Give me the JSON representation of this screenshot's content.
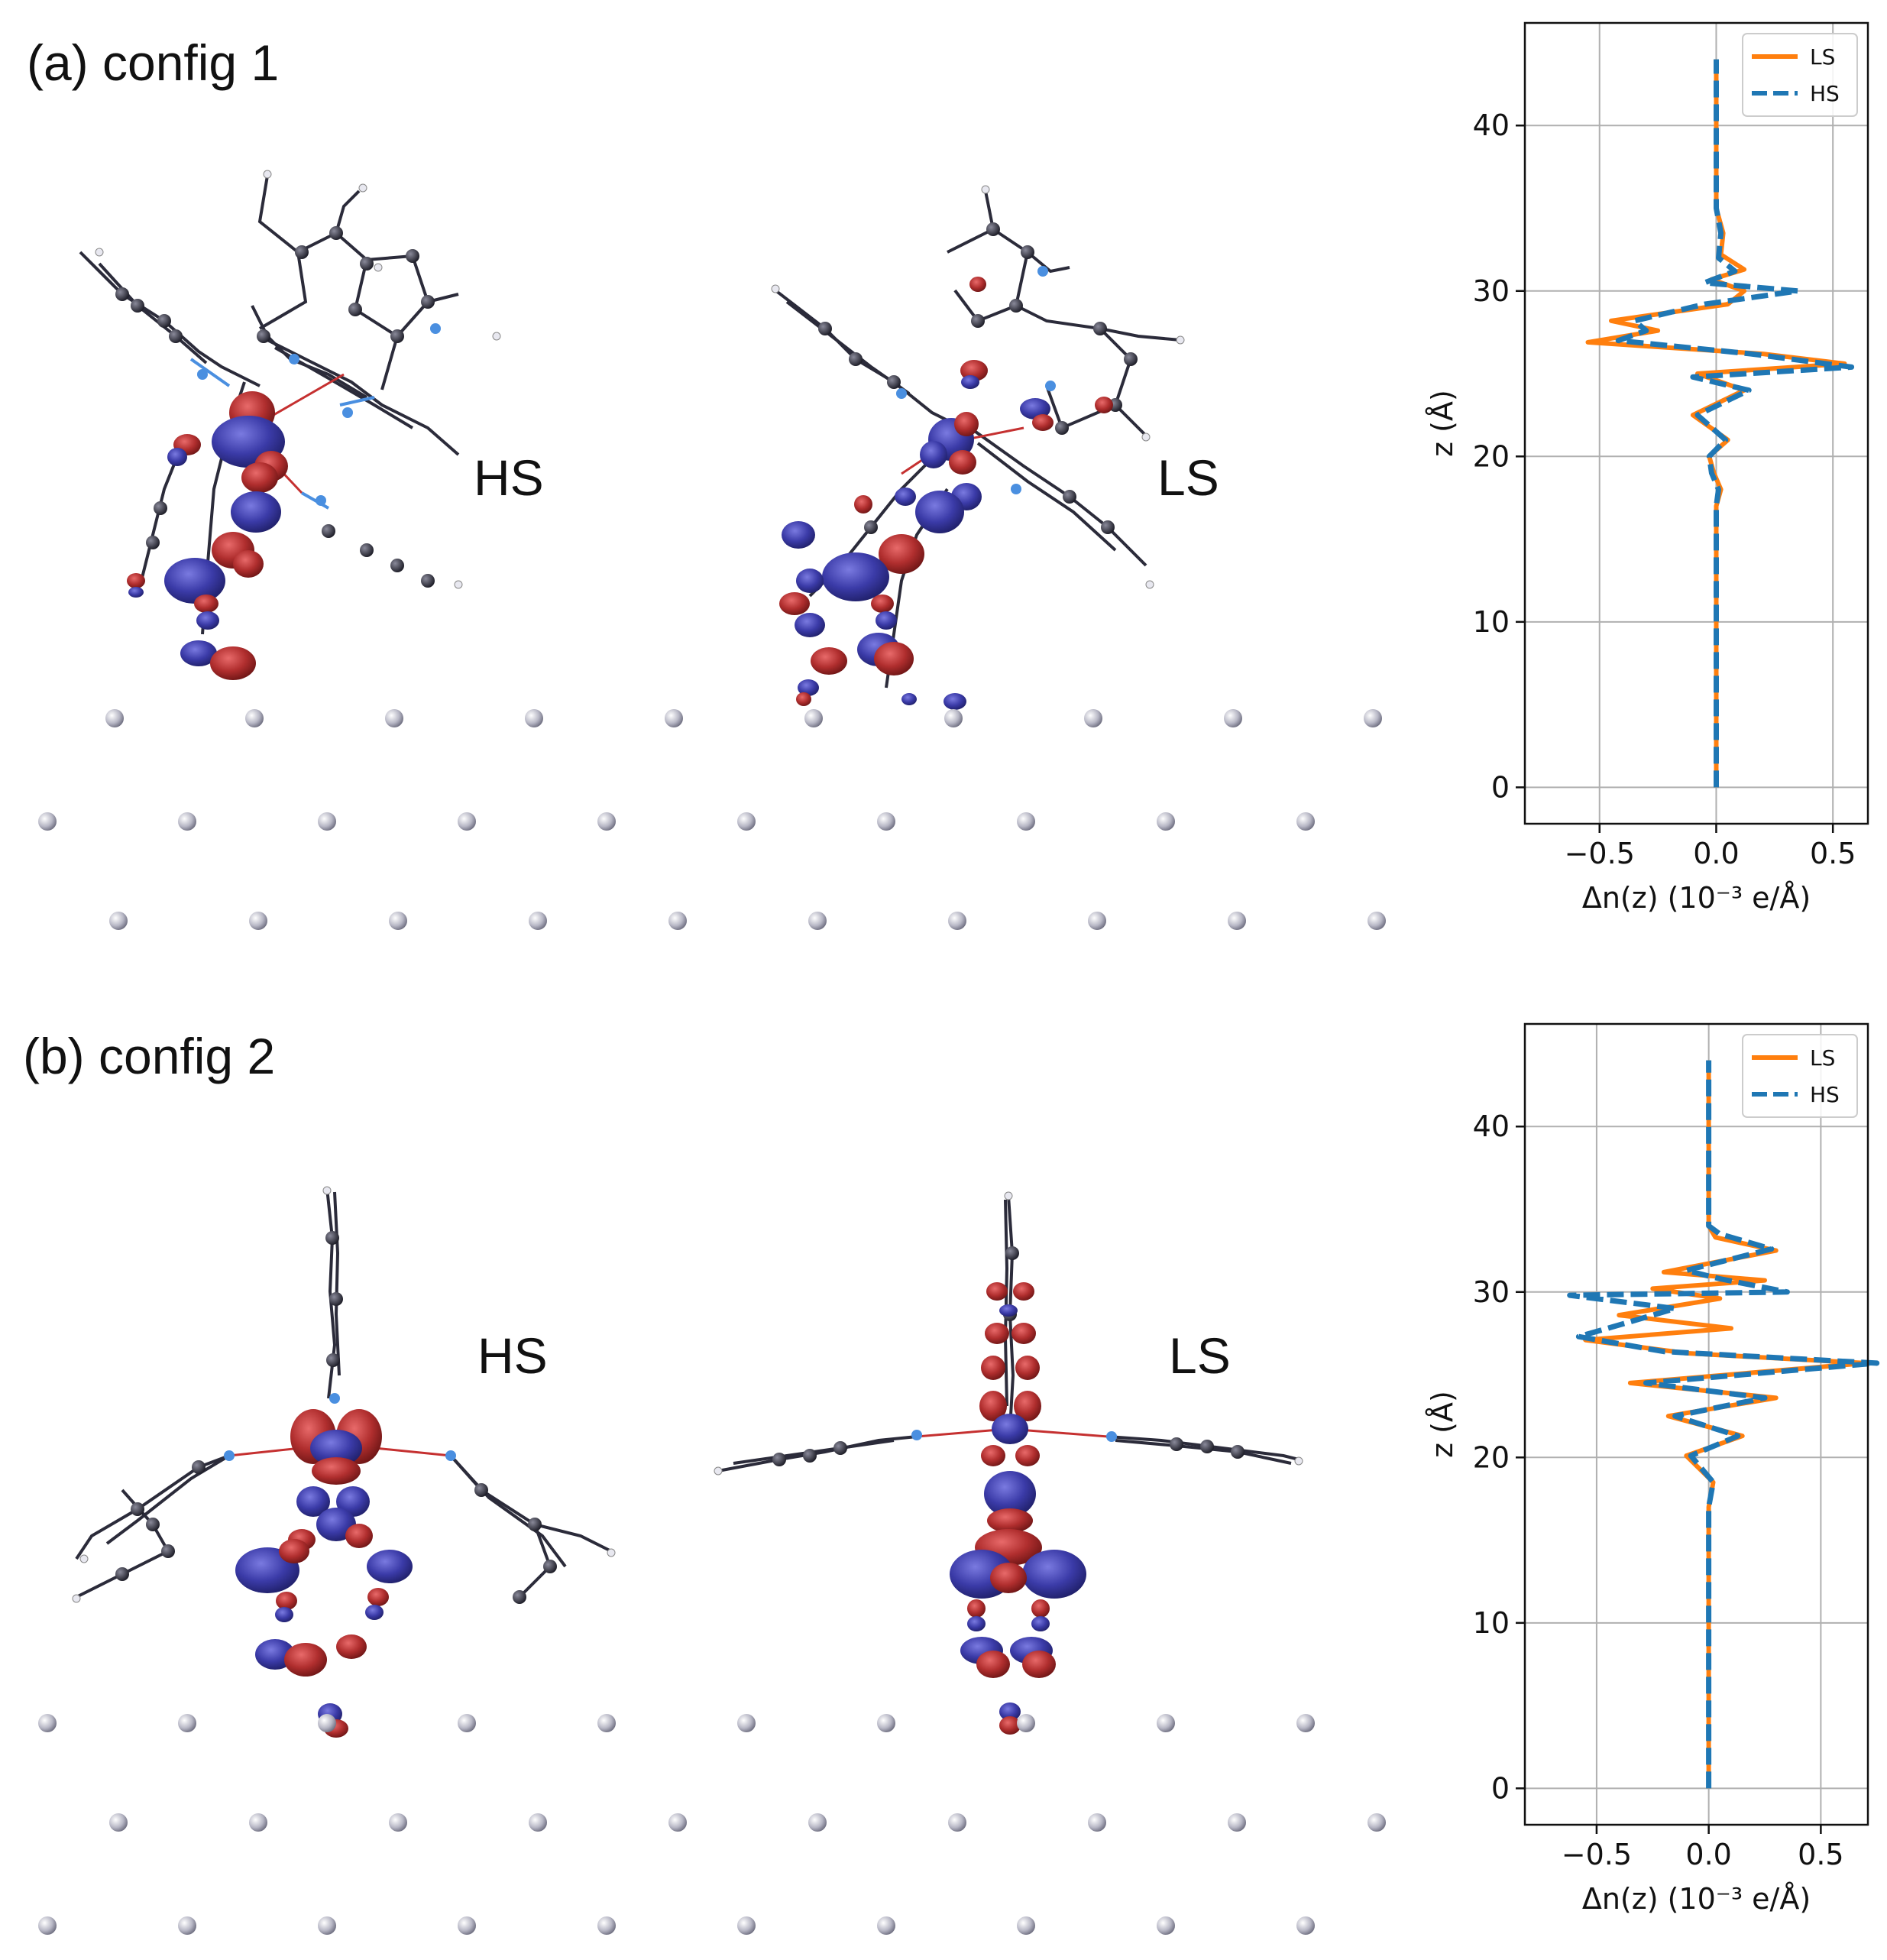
{
  "figure": {
    "panels": [
      {
        "label": "(a) config 1",
        "left_state": "HS",
        "right_state": "LS"
      },
      {
        "label": "(b) config 2",
        "left_state": "HS",
        "right_state": "LS"
      }
    ]
  },
  "colors": {
    "ls": "#ff7f0e",
    "hs": "#1f77b4",
    "isosurface_positive": "#b23232",
    "isosurface_negative": "#3c3ca8",
    "atom": "#2a2a3a",
    "nitrogen": "#4a8fe0",
    "surface_atom": "#c4c4d0"
  },
  "chart_data": [
    {
      "type": "line",
      "panel": "(a) config 1",
      "xlabel": "Δn(z) (10⁻³ e/Å)",
      "ylabel": "z (Å)",
      "xlim": [
        -0.82,
        0.65
      ],
      "ylim": [
        -2.2,
        46.2
      ],
      "xticks": [
        -0.5,
        0.0,
        0.5
      ],
      "xtick_labels": [
        "−0.5",
        "0.0",
        "0.5"
      ],
      "yticks": [
        0,
        10,
        20,
        30,
        40
      ],
      "ytick_labels": [
        "0",
        "10",
        "20",
        "30",
        "40"
      ],
      "grid": true,
      "legend": "top-right",
      "series": [
        {
          "name": "LS",
          "style": "solid",
          "points": [
            [
              0,
              0
            ],
            [
              0,
              17
            ],
            [
              0.02,
              18
            ],
            [
              -0.01,
              19
            ],
            [
              -0.03,
              20
            ],
            [
              0.05,
              21
            ],
            [
              -0.1,
              22.5
            ],
            [
              0.12,
              24
            ],
            [
              -0.08,
              25
            ],
            [
              0.55,
              25.6
            ],
            [
              0.2,
              26.2
            ],
            [
              -0.55,
              26.9
            ],
            [
              -0.25,
              27.6
            ],
            [
              -0.45,
              28.2
            ],
            [
              0.05,
              29.2
            ],
            [
              0.12,
              30
            ],
            [
              -0.02,
              30.7
            ],
            [
              0.12,
              31.3
            ],
            [
              0.02,
              32.2
            ],
            [
              0.03,
              33.5
            ],
            [
              0,
              35
            ],
            [
              0,
              44
            ]
          ]
        },
        {
          "name": "HS",
          "style": "dashed",
          "points": [
            [
              0,
              0
            ],
            [
              0,
              17
            ],
            [
              0.01,
              18
            ],
            [
              -0.02,
              19
            ],
            [
              -0.03,
              20
            ],
            [
              0.04,
              21
            ],
            [
              -0.08,
              22.5
            ],
            [
              0.14,
              24
            ],
            [
              -0.1,
              24.8
            ],
            [
              0.58,
              25.4
            ],
            [
              0.15,
              26.2
            ],
            [
              -0.42,
              27
            ],
            [
              -0.3,
              27.6
            ],
            [
              -0.35,
              28.2
            ],
            [
              -0.05,
              29.2
            ],
            [
              0.35,
              30
            ],
            [
              -0.05,
              30.5
            ],
            [
              0.08,
              31.2
            ],
            [
              0.01,
              32
            ],
            [
              0.02,
              33.5
            ],
            [
              0,
              35
            ],
            [
              0,
              44
            ]
          ]
        }
      ]
    },
    {
      "type": "line",
      "panel": "(b) config 2",
      "xlabel": "Δn(z) (10⁻³ e/Å)",
      "ylabel": "z (Å)",
      "xlim": [
        -0.82,
        0.71
      ],
      "ylim": [
        -2.2,
        46.2
      ],
      "xticks": [
        -0.5,
        0.0,
        0.5
      ],
      "xtick_labels": [
        "−0.5",
        "0.0",
        "0.5"
      ],
      "yticks": [
        0,
        10,
        20,
        30,
        40
      ],
      "ytick_labels": [
        "0",
        "10",
        "20",
        "30",
        "40"
      ],
      "grid": true,
      "legend": "top-right",
      "series": [
        {
          "name": "LS",
          "style": "solid",
          "points": [
            [
              0,
              0
            ],
            [
              0,
              17
            ],
            [
              0.02,
              18.5
            ],
            [
              -0.1,
              20.1
            ],
            [
              0.15,
              21.3
            ],
            [
              -0.18,
              22.5
            ],
            [
              0.3,
              23.6
            ],
            [
              -0.35,
              24.5
            ],
            [
              0.7,
              25.7
            ],
            [
              -0.1,
              26.3
            ],
            [
              -0.55,
              27.1
            ],
            [
              0.1,
              27.8
            ],
            [
              -0.4,
              28.6
            ],
            [
              0.05,
              29.6
            ],
            [
              -0.25,
              30.2
            ],
            [
              0.25,
              30.7
            ],
            [
              -0.2,
              31.2
            ],
            [
              0.3,
              32.5
            ],
            [
              0.03,
              33.3
            ],
            [
              0,
              34
            ],
            [
              0,
              44
            ]
          ]
        },
        {
          "name": "HS",
          "style": "dashed",
          "points": [
            [
              0,
              0
            ],
            [
              0,
              17
            ],
            [
              0.02,
              18.5
            ],
            [
              -0.08,
              20.1
            ],
            [
              0.13,
              21.3
            ],
            [
              -0.15,
              22.5
            ],
            [
              0.25,
              23.6
            ],
            [
              -0.28,
              24.5
            ],
            [
              0.75,
              25.7
            ],
            [
              -0.2,
              26.4
            ],
            [
              -0.58,
              27.3
            ],
            [
              -0.35,
              28.2
            ],
            [
              -0.15,
              29
            ],
            [
              -0.62,
              29.8
            ],
            [
              0.35,
              30
            ],
            [
              0.05,
              30.8
            ],
            [
              -0.1,
              31.3
            ],
            [
              0.28,
              32.6
            ],
            [
              0.05,
              33.5
            ],
            [
              0,
              34
            ],
            [
              0,
              44
            ]
          ]
        }
      ]
    }
  ]
}
